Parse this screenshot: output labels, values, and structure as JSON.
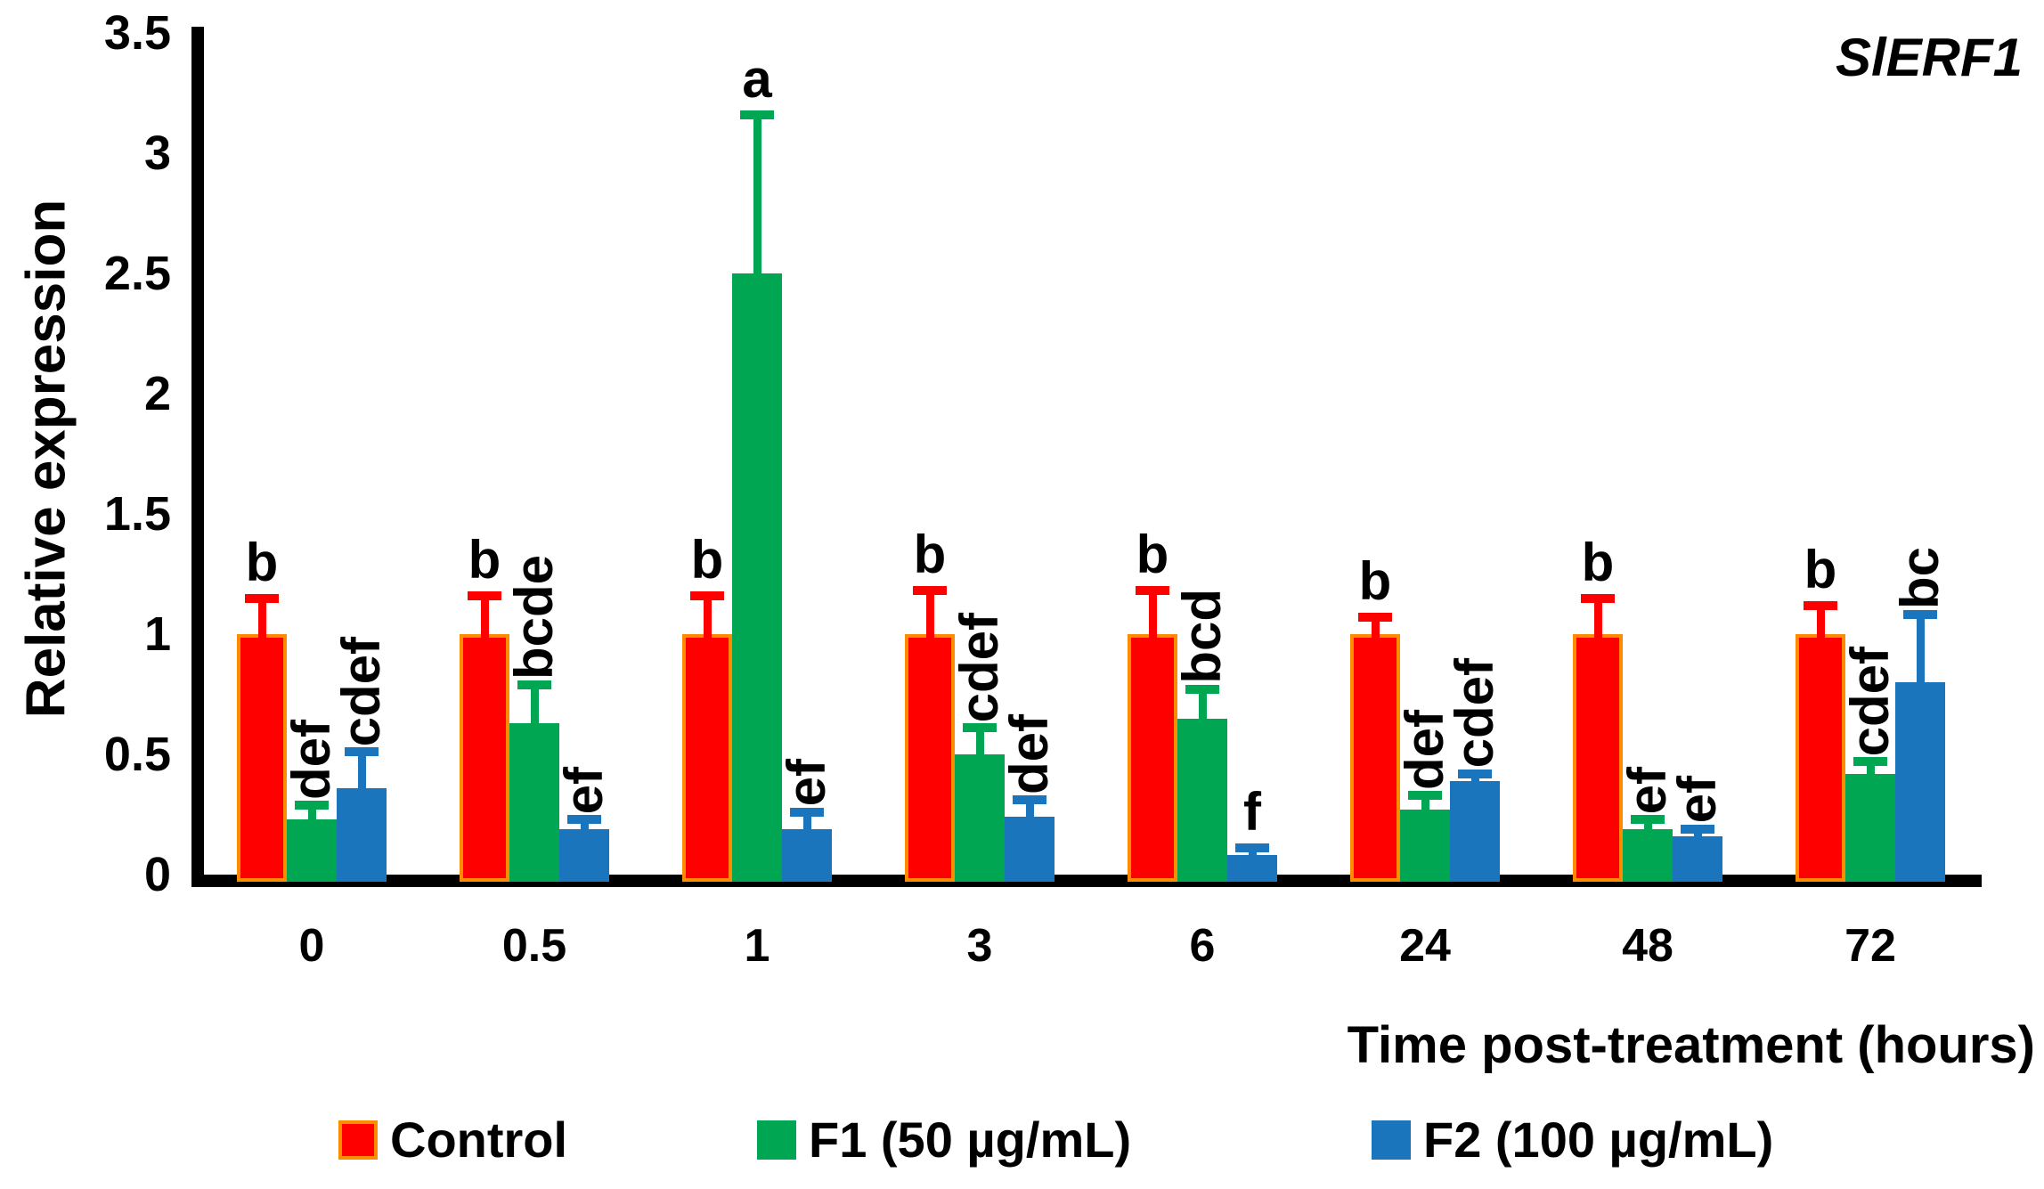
{
  "chart_data": {
    "type": "bar",
    "title": "SlERF1",
    "xlabel": "Time post-treatment (hours)",
    "ylabel": "Relative expression",
    "ylim": [
      0,
      3.5
    ],
    "yticks": [
      "0",
      "0.5",
      "1",
      "1.5",
      "2",
      "2.5",
      "3",
      "3.5"
    ],
    "categories": [
      "0",
      "0.5",
      "1",
      "3",
      "6",
      "24",
      "48",
      "72"
    ],
    "grid": false,
    "legend_position": "bottom",
    "error_bars": "upper whisker only, colored like series",
    "letters_note": "statistical significance letters above error bars; multi-letter labels rotated 90deg",
    "series": [
      {
        "key": "control",
        "name": "Control",
        "color": "#FE0000",
        "border": "#FF8C00",
        "values": [
          1.0,
          1.0,
          1.0,
          1.0,
          1.0,
          1.0,
          1.0,
          1.0
        ],
        "errors_plus": [
          0.15,
          0.16,
          0.16,
          0.18,
          0.18,
          0.07,
          0.15,
          0.12
        ],
        "letters": [
          "b",
          "b",
          "b",
          "b",
          "b",
          "b",
          "b",
          "b"
        ]
      },
      {
        "key": "f1",
        "name": "F1 (50 µg/mL)",
        "color": "#00A651",
        "border": "",
        "values": [
          0.23,
          0.63,
          2.5,
          0.5,
          0.65,
          0.27,
          0.19,
          0.42
        ],
        "errors_plus": [
          0.06,
          0.16,
          0.66,
          0.11,
          0.12,
          0.06,
          0.04,
          0.05
        ],
        "letters": [
          "def",
          "bcde",
          "a",
          "cdef",
          "bcd",
          "def",
          "ef",
          "cdef"
        ]
      },
      {
        "key": "f2",
        "name": "F2 (100 µg/mL)",
        "color": "#1B75BC",
        "border": "",
        "values": [
          0.36,
          0.19,
          0.19,
          0.24,
          0.08,
          0.39,
          0.16,
          0.8
        ],
        "errors_plus": [
          0.15,
          0.04,
          0.07,
          0.07,
          0.03,
          0.03,
          0.03,
          0.28
        ],
        "letters": [
          "cdef",
          "ef",
          "ef",
          "def",
          "f",
          "cdef",
          "ef",
          "bc"
        ]
      }
    ]
  }
}
